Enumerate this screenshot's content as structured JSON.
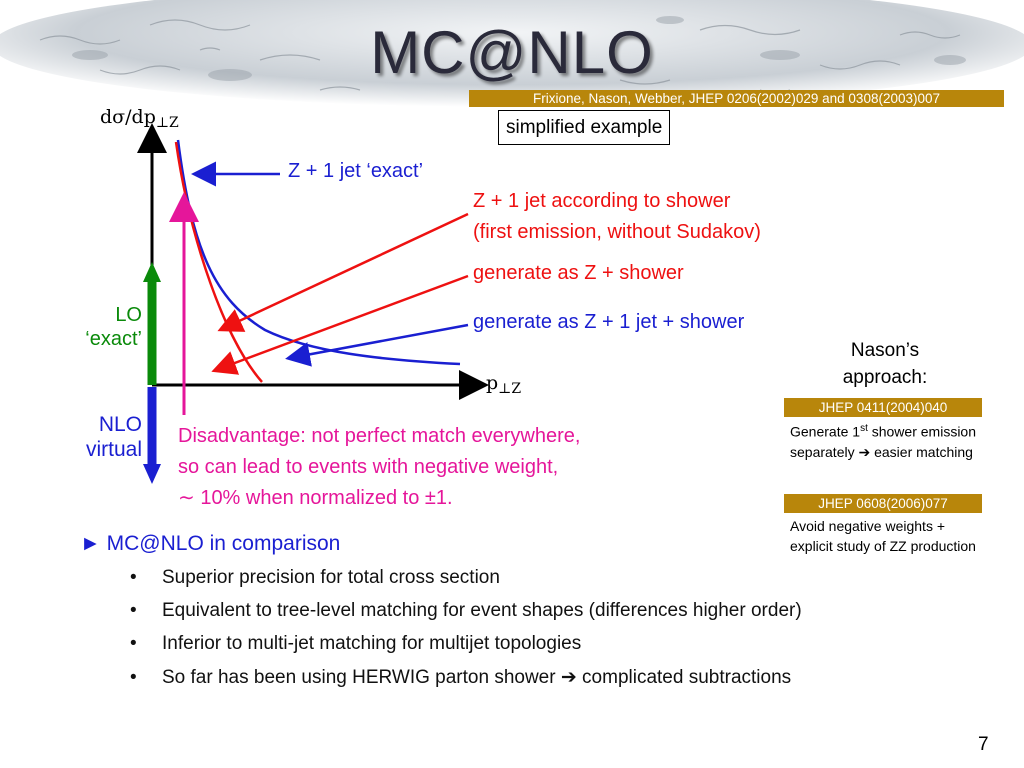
{
  "title": "MC@NLO",
  "citation": "Frixione, Nason, Webber, JHEP 0206(2002)029 and 0308(2003)007",
  "simplified_label": "simplified example",
  "plot": {
    "y_axis_label": "dσ/dp",
    "y_axis_sub": "⊥Z",
    "x_axis_label": "p",
    "x_axis_sub": "⊥Z",
    "label_z1_exact": "Z + 1 jet ‘exact’",
    "label_shower_line1": "Z + 1 jet according to shower",
    "label_shower_line2": "(first emission, without Sudakov)",
    "label_gen_z_shower": "generate as Z + shower",
    "label_gen_z1_shower": "generate as Z + 1 jet + shower",
    "label_lo_line1": "LO",
    "label_lo_line2": "‘exact’",
    "label_nlo_line1": "NLO",
    "label_nlo_line2": "virtual",
    "disadvantage_line1": "Disadvantage: not perfect match everywhere,",
    "disadvantage_line2": "so can lead to events with negative weight,",
    "disadvantage_line3": "∼ 10% when normalized to ±1.",
    "colors": {
      "blue": "#1a1fd1",
      "red": "#ee1111",
      "green": "#0a8a0a",
      "magenta": "#e5169a"
    }
  },
  "nason": {
    "heading_line1": "Nason’s",
    "heading_line2": "approach:",
    "ref1": "JHEP 0411(2004)040",
    "note1_pre": "Generate 1",
    "note1_sup": "st",
    "note1_mid": " shower emission separately ",
    "note1_arrow": "➔",
    "note1_post": " easier matching",
    "ref2": "JHEP 0608(2006)077",
    "note2": "Avoid negative weights + explicit study of ZZ production"
  },
  "bullets": {
    "marker": "►",
    "main": "MC@NLO in comparison",
    "sub_marker": "•",
    "items": [
      "Superior precision for total cross section",
      "Equivalent to tree-level matching for event shapes (differences higher order)",
      "Inferior to multi-jet matching for multijet topologies",
      "So far has been using HERWIG parton shower ➔ complicated subtractions"
    ]
  },
  "page_number": "7"
}
